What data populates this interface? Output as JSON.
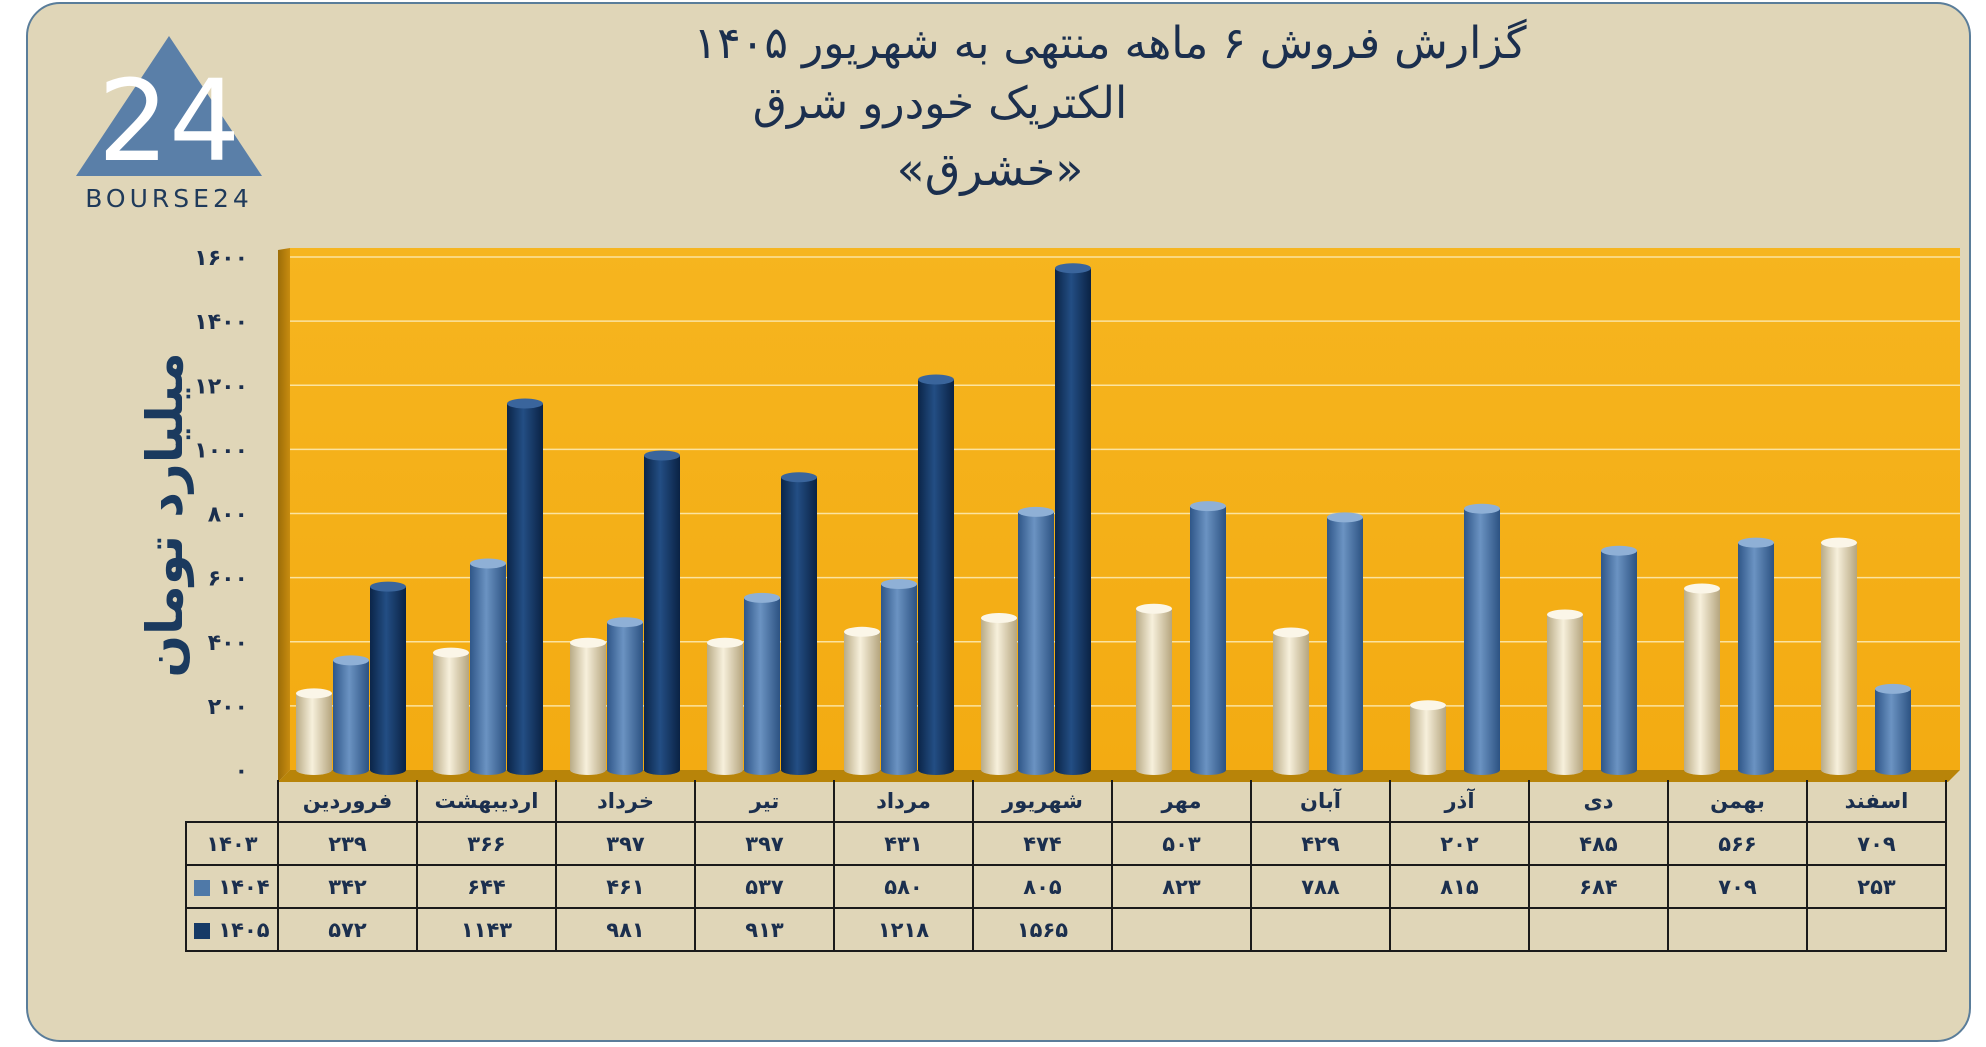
{
  "title_line1": "گزارش  فروش ۶ ماهه منتهی به شهریور ۱۴۰۵",
  "title_line2": "الکتریک خودرو شرق",
  "title_line3": "«خشرق»",
  "logo_text": "BOURSE24",
  "logo_mark": "24",
  "colors": {
    "s1403": "#e8dcc0",
    "s1404": "#4f79a8",
    "s1405": "#163a66",
    "plot_bg": "#f5b21b",
    "frame_bg": "#e0d6b8"
  },
  "chart_data": {
    "type": "bar",
    "ylabel": "میلیارد تومان",
    "ylim": [
      0,
      1600
    ],
    "yticks": [
      0,
      200,
      400,
      600,
      800,
      1000,
      1200,
      1400,
      1600
    ],
    "ytick_labels": [
      "۰",
      "۲۰۰",
      "۴۰۰",
      "۶۰۰",
      "۸۰۰",
      "۱۰۰۰",
      "۱۲۰۰",
      "۱۴۰۰",
      "۱۶۰۰"
    ],
    "categories": [
      "فروردین",
      "اردیبهشت",
      "خرداد",
      "تیر",
      "مرداد",
      "شهریور",
      "مهر",
      "آبان",
      "آذر",
      "دی",
      "بهمن",
      "اسفند"
    ],
    "series": [
      {
        "name": "۱۴۰۳",
        "values": [
          239,
          366,
          397,
          397,
          431,
          474,
          503,
          429,
          202,
          485,
          566,
          709
        ],
        "labels": [
          "۲۳۹",
          "۳۶۶",
          "۳۹۷",
          "۳۹۷",
          "۴۳۱",
          "۴۷۴",
          "۵۰۳",
          "۴۲۹",
          "۲۰۲",
          "۴۸۵",
          "۵۶۶",
          "۷۰۹"
        ]
      },
      {
        "name": "۱۴۰۴",
        "values": [
          342,
          644,
          461,
          537,
          580,
          805,
          823,
          788,
          815,
          684,
          709,
          253
        ],
        "labels": [
          "۳۴۲",
          "۶۴۴",
          "۴۶۱",
          "۵۳۷",
          "۵۸۰",
          "۸۰۵",
          "۸۲۳",
          "۷۸۸",
          "۸۱۵",
          "۶۸۴",
          "۷۰۹",
          "۲۵۳"
        ]
      },
      {
        "name": "۱۴۰۵",
        "values": [
          572,
          1143,
          981,
          913,
          1218,
          1565,
          null,
          null,
          null,
          null,
          null,
          null
        ],
        "labels": [
          "۵۷۲",
          "۱۱۴۳",
          "۹۸۱",
          "۹۱۳",
          "۱۲۱۸",
          "۱۵۶۵",
          "",
          "",
          "",
          "",
          "",
          ""
        ]
      }
    ],
    "grid": true,
    "legend": "data-table"
  }
}
